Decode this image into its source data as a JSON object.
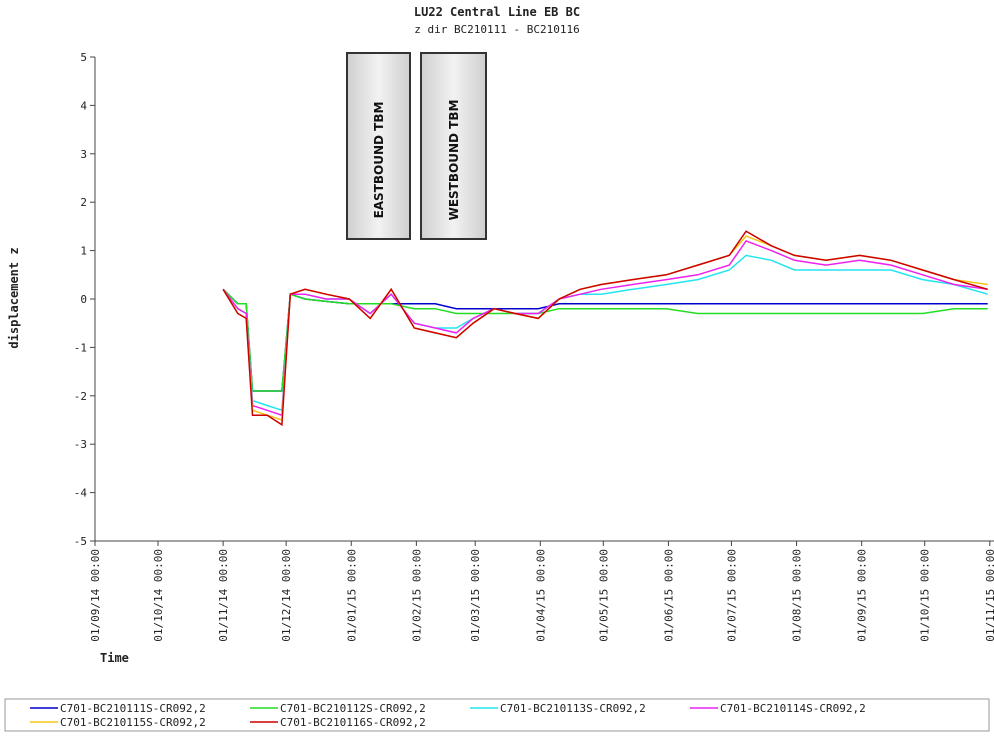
{
  "chart_data": {
    "type": "line",
    "title": "LU22 Central Line EB BC",
    "subtitle": "z dir BC210111 - BC210116",
    "ylabel": "displacement z",
    "xlabel": "Time",
    "annotations": [
      "EASTBOUND TBM",
      "WESTBOUND TBM"
    ],
    "xlim": [
      "2014-09-01",
      "2015-11-03"
    ],
    "xticks": [
      {
        "value": "2014-09-01",
        "label": "01/09/14 00:00"
      },
      {
        "value": "2014-10-01",
        "label": "01/10/14 00:00"
      },
      {
        "value": "2014-11-01",
        "label": "01/11/14 00:00"
      },
      {
        "value": "2014-12-01",
        "label": "01/12/14 00:00"
      },
      {
        "value": "2015-01-01",
        "label": "01/01/15 00:00"
      },
      {
        "value": "2015-02-01",
        "label": "01/02/15 00:00"
      },
      {
        "value": "2015-03-01",
        "label": "01/03/15 00:00"
      },
      {
        "value": "2015-04-01",
        "label": "01/04/15 00:00"
      },
      {
        "value": "2015-05-01",
        "label": "01/05/15 00:00"
      },
      {
        "value": "2015-06-01",
        "label": "01/06/15 00:00"
      },
      {
        "value": "2015-07-01",
        "label": "01/07/15 00:00"
      },
      {
        "value": "2015-08-01",
        "label": "01/08/15 00:00"
      },
      {
        "value": "2015-09-01",
        "label": "01/09/15 00:00"
      },
      {
        "value": "2015-10-01",
        "label": "01/10/15 00:00"
      },
      {
        "value": "2015-11-01",
        "label": "01/11/15 00:00"
      }
    ],
    "ylim": [
      -5,
      5
    ],
    "yticks": [
      -5,
      -4,
      -3,
      -2,
      -1,
      0,
      1,
      2,
      3,
      4,
      5
    ],
    "grid": false,
    "x": [
      "2014-11-01",
      "2014-11-08",
      "2014-11-12",
      "2014-11-15",
      "2014-11-22",
      "2014-11-29",
      "2014-12-03",
      "2014-12-10",
      "2014-12-20",
      "2014-12-31",
      "2015-01-10",
      "2015-01-20",
      "2015-01-31",
      "2015-02-10",
      "2015-02-20",
      "2015-02-28",
      "2015-03-10",
      "2015-03-20",
      "2015-03-31",
      "2015-04-10",
      "2015-04-20",
      "2015-04-30",
      "2015-05-15",
      "2015-05-31",
      "2015-06-15",
      "2015-06-30",
      "2015-07-08",
      "2015-07-20",
      "2015-07-31",
      "2015-08-15",
      "2015-08-31",
      "2015-09-15",
      "2015-09-30",
      "2015-10-15",
      "2015-10-31"
    ],
    "series": [
      {
        "name": "C701-BC210111S-CR092,2",
        "color": "#0000cc",
        "values": [
          0.2,
          -0.1,
          -0.1,
          -1.9,
          -1.9,
          -1.9,
          0.1,
          0.0,
          -0.05,
          -0.1,
          -0.1,
          -0.1,
          -0.1,
          -0.1,
          -0.2,
          -0.2,
          -0.2,
          -0.2,
          -0.2,
          -0.1,
          -0.1,
          -0.1,
          -0.1,
          -0.1,
          -0.1,
          -0.1,
          -0.1,
          -0.1,
          -0.1,
          -0.1,
          -0.1,
          -0.1,
          -0.1,
          -0.1,
          -0.1
        ]
      },
      {
        "name": "C701-BC210112S-CR092,2",
        "color": "#22dd22",
        "values": [
          0.2,
          -0.1,
          -0.1,
          -1.9,
          -1.9,
          -1.9,
          0.1,
          0.0,
          -0.05,
          -0.1,
          -0.1,
          -0.1,
          -0.2,
          -0.2,
          -0.3,
          -0.3,
          -0.3,
          -0.3,
          -0.3,
          -0.2,
          -0.2,
          -0.2,
          -0.2,
          -0.2,
          -0.3,
          -0.3,
          -0.3,
          -0.3,
          -0.3,
          -0.3,
          -0.3,
          -0.3,
          -0.3,
          -0.2,
          -0.2
        ]
      },
      {
        "name": "C701-BC210113S-CR092,2",
        "color": "#22e5f0",
        "values": [
          0.2,
          -0.2,
          -0.3,
          -2.1,
          -2.2,
          -2.3,
          0.1,
          0.1,
          0.0,
          0.0,
          -0.3,
          0.1,
          -0.5,
          -0.6,
          -0.6,
          -0.4,
          -0.2,
          -0.3,
          -0.3,
          0.0,
          0.1,
          0.1,
          0.2,
          0.3,
          0.4,
          0.6,
          0.9,
          0.8,
          0.6,
          0.6,
          0.6,
          0.6,
          0.4,
          0.3,
          0.1
        ]
      },
      {
        "name": "C701-BC210114S-CR092,2",
        "color": "#ee22ee",
        "values": [
          0.2,
          -0.2,
          -0.3,
          -2.2,
          -2.3,
          -2.4,
          0.1,
          0.1,
          0.0,
          0.0,
          -0.3,
          0.1,
          -0.5,
          -0.6,
          -0.7,
          -0.4,
          -0.2,
          -0.3,
          -0.3,
          0.0,
          0.1,
          0.2,
          0.3,
          0.4,
          0.5,
          0.7,
          1.2,
          1.0,
          0.8,
          0.7,
          0.8,
          0.7,
          0.5,
          0.3,
          0.2
        ]
      },
      {
        "name": "C701-BC210115S-CR092,2",
        "color": "#f5c518",
        "values": [
          0.2,
          -0.3,
          -0.4,
          -2.3,
          -2.4,
          -2.5,
          0.1,
          0.2,
          0.1,
          0.0,
          -0.4,
          0.2,
          -0.6,
          -0.7,
          -0.8,
          -0.5,
          -0.2,
          -0.3,
          -0.4,
          0.0,
          0.2,
          0.3,
          0.4,
          0.5,
          0.7,
          0.9,
          1.3,
          1.1,
          0.9,
          0.8,
          0.9,
          0.8,
          0.6,
          0.4,
          0.3
        ]
      },
      {
        "name": "C701-BC210116S-CR092,2",
        "color": "#cc0000",
        "values": [
          0.2,
          -0.3,
          -0.4,
          -2.4,
          -2.4,
          -2.6,
          0.1,
          0.2,
          0.1,
          0.0,
          -0.4,
          0.2,
          -0.6,
          -0.7,
          -0.8,
          -0.5,
          -0.2,
          -0.3,
          -0.4,
          0.0,
          0.2,
          0.3,
          0.4,
          0.5,
          0.7,
          0.9,
          1.4,
          1.1,
          0.9,
          0.8,
          0.9,
          0.8,
          0.6,
          0.4,
          0.2
        ]
      }
    ]
  }
}
